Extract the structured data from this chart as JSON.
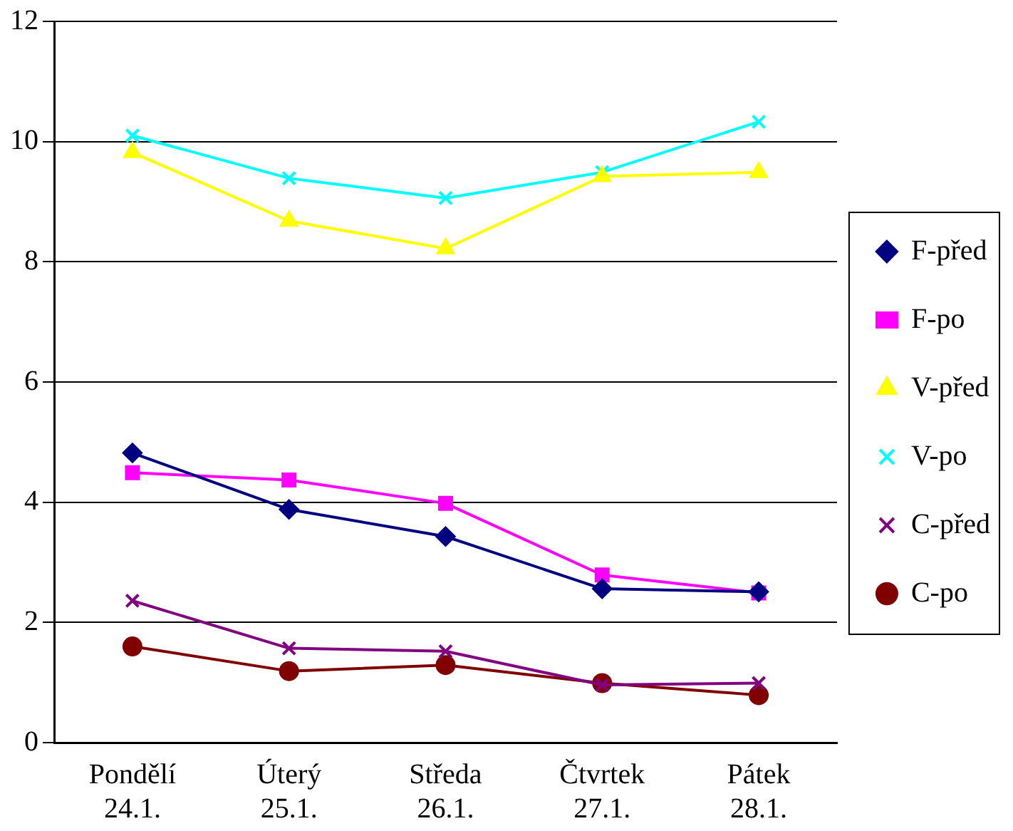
{
  "chart_data": {
    "type": "line",
    "categories": [
      "Pondělí\n24.1.",
      "Úterý\n25.1.",
      "Středa\n26.1.",
      "Čtvrtek\n27.1.",
      "Pátek\n28.1."
    ],
    "ylim": [
      0,
      12
    ],
    "yticks": [
      0,
      2,
      4,
      6,
      8,
      10,
      12
    ],
    "grid": "y",
    "legend": "right",
    "line_style": "solid",
    "series": [
      {
        "name": "F-před",
        "color": "#000080",
        "marker": "diamond",
        "values": [
          4.82,
          3.88,
          3.43,
          2.56,
          2.51
        ]
      },
      {
        "name": "F-po",
        "color": "#ff00ff",
        "marker": "square",
        "values": [
          4.49,
          4.37,
          3.98,
          2.79,
          2.49
        ]
      },
      {
        "name": "V-před",
        "color": "#ffff00",
        "marker": "triangle",
        "values": [
          9.82,
          8.68,
          8.22,
          9.42,
          9.49
        ]
      },
      {
        "name": "V-po",
        "color": "#00ffff",
        "marker": "cross",
        "values": [
          10.1,
          9.39,
          9.06,
          9.49,
          10.33
        ]
      },
      {
        "name": "C-před",
        "color": "#800080",
        "marker": "cross",
        "values": [
          2.36,
          1.57,
          1.52,
          0.96,
          0.99
        ]
      },
      {
        "name": "C-po",
        "color": "#800000",
        "marker": "circle",
        "values": [
          1.6,
          1.19,
          1.29,
          0.99,
          0.79
        ]
      }
    ]
  }
}
